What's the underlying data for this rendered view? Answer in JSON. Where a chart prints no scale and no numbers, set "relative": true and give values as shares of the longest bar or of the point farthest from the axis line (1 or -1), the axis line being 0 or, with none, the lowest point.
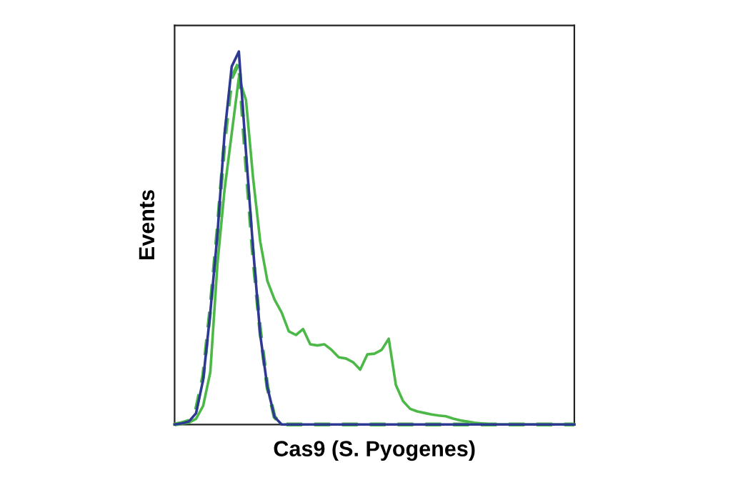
{
  "chart_data": {
    "type": "line",
    "xlabel": "Cas9 (S. Pyogenes)",
    "ylabel": "Events",
    "relative": true,
    "marker": "none",
    "categories": [
      null,
      null,
      null,
      null,
      null,
      null,
      null,
      null,
      null,
      null,
      null,
      null,
      null,
      null,
      null,
      null,
      null,
      null,
      null,
      null,
      null,
      null,
      null,
      null,
      null,
      null,
      null,
      null,
      null,
      null,
      null,
      null,
      null,
      null,
      null,
      null,
      null,
      null,
      null,
      null,
      null,
      null,
      null,
      null,
      null,
      null,
      null,
      null,
      null,
      null,
      null,
      null,
      null,
      null,
      null,
      null,
      null
    ],
    "series": [
      {
        "color": "#4cb848",
        "line_style": "solid",
        "values": [
          0,
          0.002,
          0.005,
          0.015,
          0.05,
          0.14,
          0.43,
          0.63,
          0.78,
          0.93,
          0.87,
          0.66,
          0.49,
          0.385,
          0.335,
          0.3,
          0.25,
          0.24,
          0.256,
          0.215,
          0.212,
          0.215,
          0.2,
          0.18,
          0.177,
          0.167,
          0.147,
          0.188,
          0.19,
          0.2,
          0.23,
          0.106,
          0.063,
          0.042,
          0.035,
          0.031,
          0.027,
          0.024,
          0.022,
          0.016,
          0.011,
          0.008,
          0.005,
          0.003,
          0.001,
          0,
          0,
          0,
          0,
          0,
          0,
          0,
          0,
          0,
          0,
          0,
          0
        ]
      },
      {
        "color": "#4cb848",
        "line_style": "dashed",
        "values": [
          0,
          0.004,
          0.01,
          0.04,
          0.13,
          0.31,
          0.52,
          0.76,
          0.93,
          0.97,
          0.7,
          0.45,
          0.25,
          0.1,
          0.02,
          0,
          0,
          0,
          0,
          0,
          0,
          0,
          0,
          0,
          0,
          0,
          0,
          0,
          0,
          0,
          0,
          0,
          0,
          0,
          0,
          0,
          0,
          0,
          0,
          0,
          0,
          0,
          0,
          0,
          0,
          0,
          0,
          0,
          0,
          0,
          0,
          0,
          0,
          0,
          0,
          0,
          0
        ]
      },
      {
        "color": "#2e3a92",
        "line_style": "solid",
        "values": [
          0,
          0.003,
          0.008,
          0.03,
          0.12,
          0.3,
          0.51,
          0.78,
          0.96,
          1.0,
          0.73,
          0.47,
          0.24,
          0.1,
          0.02,
          0,
          0,
          0,
          0,
          0,
          0,
          0,
          0,
          0,
          0,
          0,
          0,
          0,
          0,
          0,
          0,
          0,
          0,
          0,
          0,
          0,
          0,
          0,
          0,
          0,
          0,
          0,
          0,
          0,
          0,
          0,
          0,
          0,
          0,
          0,
          0,
          0,
          0,
          0,
          0,
          0,
          0
        ]
      }
    ]
  }
}
